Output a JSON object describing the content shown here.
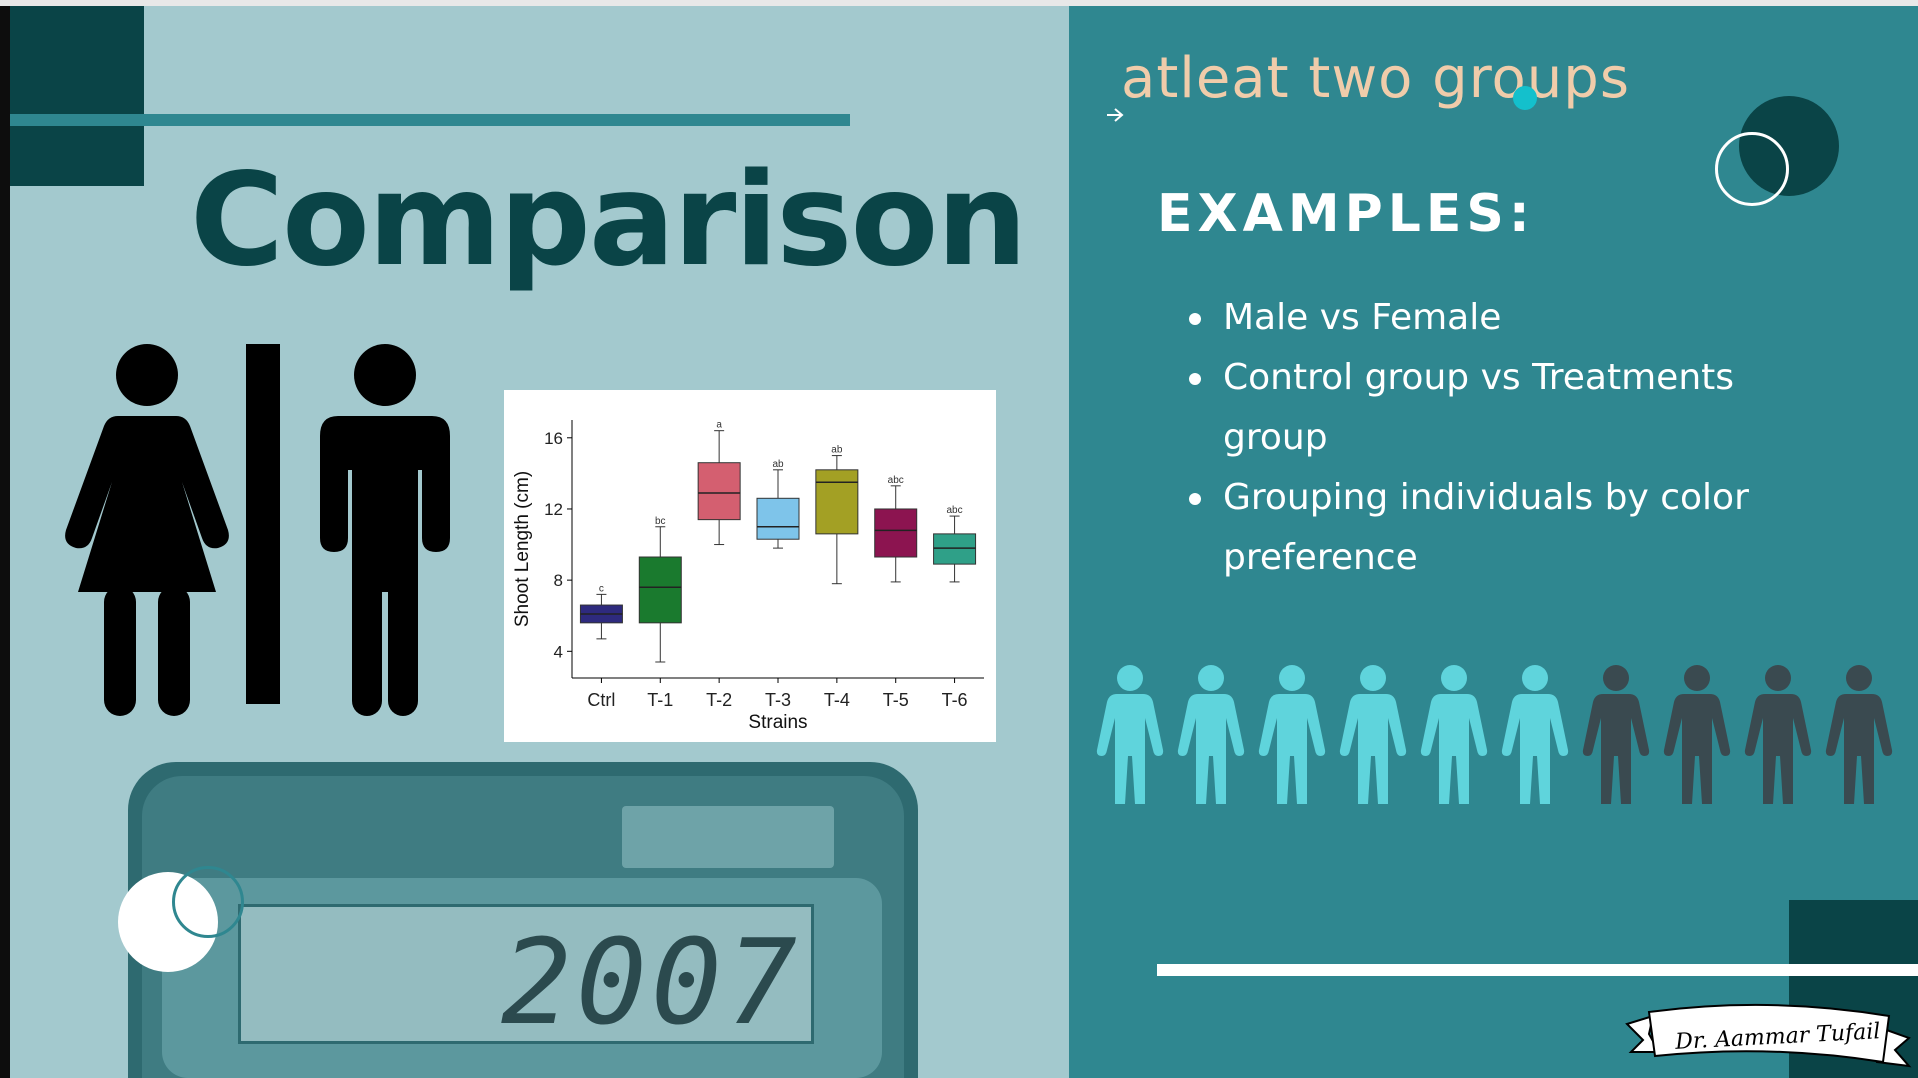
{
  "left_panel": {
    "title": "Comparison",
    "calculator": {
      "display": "2007"
    }
  },
  "right_panel": {
    "subtitle": "atleat two groups",
    "examples_heading": "EXAMPLES:",
    "examples": [
      "Male vs Female",
      "Control group vs Treatments group",
      "Grouping individuals by color preference"
    ],
    "people_icons": {
      "highlighted": 6,
      "dark": 4
    },
    "signature": "Dr. Aammar Tufail"
  },
  "colors": {
    "left_bg": "#a3c9ce",
    "right_bg": "#2f8790",
    "title": "#0a4447",
    "subtitle": "#f0ccaa",
    "person_light": "#5fd4dc",
    "person_dark": "#3a4a50"
  },
  "chart_data": {
    "type": "box",
    "xlabel": "Strains",
    "ylabel": "Shoot Length (cm)",
    "ylim": [
      2.5,
      17
    ],
    "yticks": [
      4,
      8,
      12,
      16
    ],
    "grid": false,
    "categories": [
      "Ctrl",
      "T-1",
      "T-2",
      "T-3",
      "T-4",
      "T-5",
      "T-6"
    ],
    "boxes": [
      {
        "category": "Ctrl",
        "min": 4.7,
        "q1": 5.6,
        "median": 6.1,
        "q3": 6.6,
        "max": 7.2,
        "letter": "c",
        "color": "#2e2a7e"
      },
      {
        "category": "T-1",
        "min": 3.4,
        "q1": 5.6,
        "median": 7.6,
        "q3": 9.3,
        "max": 11.0,
        "letter": "bc",
        "color": "#1a7a2e"
      },
      {
        "category": "T-2",
        "min": 10.0,
        "q1": 11.4,
        "median": 12.9,
        "q3": 14.6,
        "max": 16.4,
        "letter": "a",
        "color": "#d45f70"
      },
      {
        "category": "T-3",
        "min": 9.8,
        "q1": 10.3,
        "median": 11.0,
        "q3": 12.6,
        "max": 14.2,
        "letter": "ab",
        "color": "#7ec4ea"
      },
      {
        "category": "T-4",
        "min": 7.8,
        "q1": 10.6,
        "median": 13.5,
        "q3": 14.2,
        "max": 15.0,
        "letter": "ab",
        "color": "#a3a024"
      },
      {
        "category": "T-5",
        "min": 7.9,
        "q1": 9.3,
        "median": 10.8,
        "q3": 12.0,
        "max": 13.3,
        "letter": "abc",
        "color": "#8c1450"
      },
      {
        "category": "T-6",
        "min": 7.9,
        "q1": 8.9,
        "median": 9.8,
        "q3": 10.6,
        "max": 11.6,
        "letter": "abc",
        "color": "#2fa088"
      }
    ]
  }
}
